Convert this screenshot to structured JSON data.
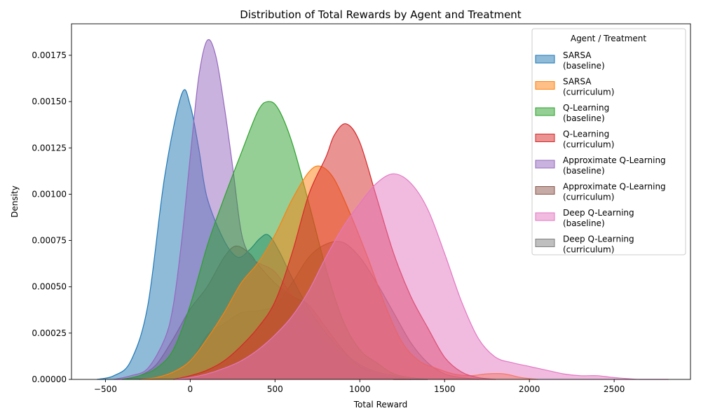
{
  "chart_data": {
    "type": "area",
    "title": "Distribution of Total Rewards by Agent and Treatment",
    "xlabel": "Total Reward",
    "ylabel": "Density",
    "xlim": [
      -700,
      2950
    ],
    "ylim": [
      0,
      0.00192
    ],
    "x_ticks": [
      -500,
      0,
      500,
      1000,
      1500,
      2000,
      2500
    ],
    "y_ticks": [
      0,
      0.00025,
      0.0005,
      0.00075,
      0.001,
      0.00125,
      0.0015,
      0.00175
    ],
    "y_tick_labels": [
      "0.00000",
      "0.00025",
      "0.00050",
      "0.00075",
      "0.00100",
      "0.00125",
      "0.00150",
      "0.00175"
    ],
    "legend": {
      "title": "Agent / Treatment",
      "placement": "top-right",
      "entries": [
        {
          "line1": "SARSA",
          "line2": "(baseline)",
          "color": "#1f77b4"
        },
        {
          "line1": "SARSA",
          "line2": "(curriculum)",
          "color": "#ff7f0e"
        },
        {
          "line1": "Q-Learning",
          "line2": "(baseline)",
          "color": "#2ca02c"
        },
        {
          "line1": "Q-Learning",
          "line2": "(curriculum)",
          "color": "#d62728"
        },
        {
          "line1": "Approximate Q-Learning",
          "line2": "(baseline)",
          "color": "#9467bd"
        },
        {
          "line1": "Approximate Q-Learning",
          "line2": "(curriculum)",
          "color": "#8c564b"
        },
        {
          "line1": "Deep Q-Learning",
          "line2": "(baseline)",
          "color": "#e377c2"
        },
        {
          "line1": "Deep Q-Learning",
          "line2": "(curriculum)",
          "color": "#7f7f7f"
        }
      ]
    },
    "series": [
      {
        "color": "#7f7f7f",
        "points": [
          [
            -300,
            0
          ],
          [
            -200,
            1e-05
          ],
          [
            -100,
            3e-05
          ],
          [
            0,
            9e-05
          ],
          [
            100,
            0.00024
          ],
          [
            200,
            0.0003
          ],
          [
            300,
            0.00036
          ],
          [
            400,
            0.00037
          ],
          [
            500,
            0.0004
          ],
          [
            600,
            0.00052
          ],
          [
            700,
            0.00066
          ],
          [
            800,
            0.00073
          ],
          [
            900,
            0.00074
          ],
          [
            1000,
            0.00066
          ],
          [
            1100,
            0.00052
          ],
          [
            1200,
            0.00036
          ],
          [
            1300,
            0.0002
          ],
          [
            1400,
            9e-05
          ],
          [
            1500,
            3e-05
          ],
          [
            1600,
            1e-05
          ],
          [
            1700,
            0
          ]
        ]
      },
      {
        "color": "#8c564b",
        "points": [
          [
            -400,
            0
          ],
          [
            -300,
            2e-05
          ],
          [
            -200,
            8e-05
          ],
          [
            -100,
            0.00022
          ],
          [
            0,
            0.00038
          ],
          [
            100,
            0.0005
          ],
          [
            200,
            0.00066
          ],
          [
            270,
            0.00072
          ],
          [
            350,
            0.00068
          ],
          [
            400,
            0.00062
          ],
          [
            500,
            0.00052
          ],
          [
            600,
            0.00045
          ],
          [
            700,
            0.0004
          ],
          [
            800,
            0.00028
          ],
          [
            900,
            0.00016
          ],
          [
            1000,
            7e-05
          ],
          [
            1100,
            3e-05
          ],
          [
            1200,
            0
          ],
          [
            1300,
            0
          ]
        ]
      },
      {
        "color": "#1f77b4",
        "points": [
          [
            -550,
            0
          ],
          [
            -450,
            2e-05
          ],
          [
            -350,
            0.0001
          ],
          [
            -250,
            0.0004
          ],
          [
            -150,
            0.0011
          ],
          [
            -50,
            0.00154
          ],
          [
            0,
            0.00148
          ],
          [
            50,
            0.00125
          ],
          [
            100,
            0.00098
          ],
          [
            200,
            0.00075
          ],
          [
            280,
            0.00066
          ],
          [
            350,
            0.0007
          ],
          [
            410,
            0.00076
          ],
          [
            460,
            0.00078
          ],
          [
            520,
            0.0007
          ],
          [
            600,
            0.00055
          ],
          [
            700,
            0.00038
          ],
          [
            800,
            0.00025
          ],
          [
            900,
            0.00015
          ],
          [
            1000,
            8e-05
          ],
          [
            1100,
            4e-05
          ],
          [
            1200,
            2e-05
          ],
          [
            1300,
            0
          ],
          [
            1400,
            0
          ]
        ]
      },
      {
        "color": "#9467bd",
        "points": [
          [
            -450,
            0
          ],
          [
            -350,
            2e-05
          ],
          [
            -250,
            6e-05
          ],
          [
            -150,
            0.00022
          ],
          [
            -100,
            0.0004
          ],
          [
            -50,
            0.00075
          ],
          [
            0,
            0.0012
          ],
          [
            50,
            0.00163
          ],
          [
            100,
            0.00183
          ],
          [
            150,
            0.00175
          ],
          [
            200,
            0.00148
          ],
          [
            250,
            0.00115
          ],
          [
            300,
            0.0008
          ],
          [
            350,
            0.00067
          ],
          [
            400,
            0.00063
          ],
          [
            500,
            0.00058
          ],
          [
            600,
            0.00045
          ],
          [
            700,
            0.00032
          ],
          [
            800,
            0.0002
          ],
          [
            900,
            0.00012
          ],
          [
            1000,
            6e-05
          ],
          [
            1100,
            3e-05
          ],
          [
            1200,
            1e-05
          ],
          [
            1300,
            0
          ]
        ]
      },
      {
        "color": "#2ca02c",
        "points": [
          [
            -400,
            0
          ],
          [
            -300,
            2e-05
          ],
          [
            -200,
            6e-05
          ],
          [
            -100,
            0.00016
          ],
          [
            0,
            0.0004
          ],
          [
            100,
            0.00072
          ],
          [
            200,
            0.00098
          ],
          [
            300,
            0.00122
          ],
          [
            400,
            0.00145
          ],
          [
            460,
            0.0015
          ],
          [
            520,
            0.00146
          ],
          [
            600,
            0.00128
          ],
          [
            700,
            0.00095
          ],
          [
            800,
            0.0006
          ],
          [
            900,
            0.00032
          ],
          [
            1000,
            0.00016
          ],
          [
            1100,
            9e-05
          ],
          [
            1200,
            3e-05
          ],
          [
            1300,
            1e-05
          ],
          [
            1400,
            0
          ]
        ]
      },
      {
        "color": "#ff7f0e",
        "points": [
          [
            -300,
            0
          ],
          [
            -200,
            1e-05
          ],
          [
            -100,
            4e-05
          ],
          [
            0,
            0.0001
          ],
          [
            100,
            0.00022
          ],
          [
            200,
            0.00036
          ],
          [
            300,
            0.00052
          ],
          [
            400,
            0.00063
          ],
          [
            500,
            0.00078
          ],
          [
            600,
            0.00097
          ],
          [
            700,
            0.00112
          ],
          [
            770,
            0.00115
          ],
          [
            850,
            0.00108
          ],
          [
            950,
            0.00088
          ],
          [
            1050,
            0.00065
          ],
          [
            1150,
            0.0004
          ],
          [
            1250,
            0.0002
          ],
          [
            1350,
            0.0001
          ],
          [
            1450,
            6e-05
          ],
          [
            1550,
            3e-05
          ],
          [
            1650,
            2e-05
          ],
          [
            1750,
            3e-05
          ],
          [
            1850,
            3e-05
          ],
          [
            1950,
            1e-05
          ],
          [
            2050,
            0
          ]
        ]
      },
      {
        "color": "#d62728",
        "points": [
          [
            -100,
            0
          ],
          [
            0,
            2e-05
          ],
          [
            100,
            5e-05
          ],
          [
            200,
            0.0001
          ],
          [
            300,
            0.00018
          ],
          [
            400,
            0.00028
          ],
          [
            500,
            0.00042
          ],
          [
            600,
            0.00068
          ],
          [
            700,
            0.001
          ],
          [
            800,
            0.0012
          ],
          [
            850,
            0.00132
          ],
          [
            920,
            0.00138
          ],
          [
            1000,
            0.00128
          ],
          [
            1100,
            0.00098
          ],
          [
            1200,
            0.00068
          ],
          [
            1300,
            0.00045
          ],
          [
            1400,
            0.00028
          ],
          [
            1500,
            0.00012
          ],
          [
            1600,
            4e-05
          ],
          [
            1700,
            1e-05
          ],
          [
            1800,
            0
          ]
        ]
      },
      {
        "color": "#e377c2",
        "points": [
          [
            -100,
            0
          ],
          [
            0,
            1e-05
          ],
          [
            100,
            3e-05
          ],
          [
            200,
            6e-05
          ],
          [
            300,
            0.0001
          ],
          [
            400,
            0.00016
          ],
          [
            500,
            0.00024
          ],
          [
            600,
            0.00034
          ],
          [
            700,
            0.00048
          ],
          [
            800,
            0.00066
          ],
          [
            900,
            0.00082
          ],
          [
            1000,
            0.00095
          ],
          [
            1100,
            0.00106
          ],
          [
            1200,
            0.00111
          ],
          [
            1300,
            0.00106
          ],
          [
            1400,
            0.00092
          ],
          [
            1500,
            0.00068
          ],
          [
            1600,
            0.00042
          ],
          [
            1700,
            0.00022
          ],
          [
            1800,
            0.00012
          ],
          [
            1900,
            9e-05
          ],
          [
            2000,
            7e-05
          ],
          [
            2100,
            5e-05
          ],
          [
            2200,
            3e-05
          ],
          [
            2300,
            2e-05
          ],
          [
            2400,
            2e-05
          ],
          [
            2500,
            1e-05
          ],
          [
            2650,
            0
          ],
          [
            2820,
            0
          ]
        ]
      }
    ]
  }
}
